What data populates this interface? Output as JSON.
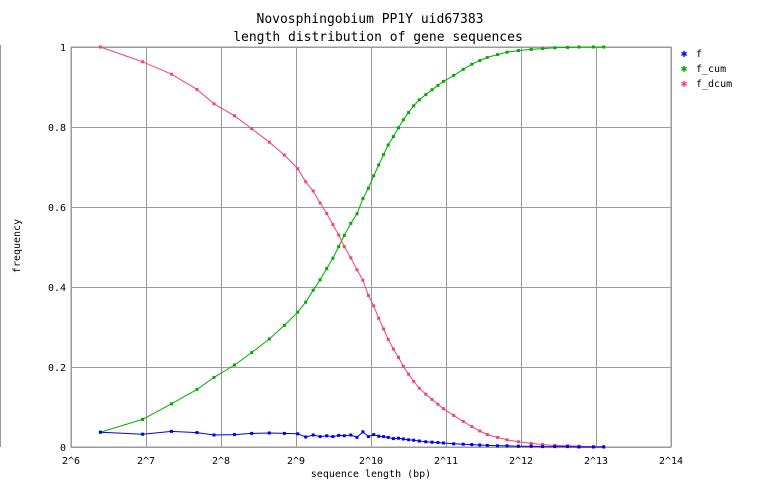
{
  "chart_data": {
    "type": "line",
    "title_line1": "Novosphingobium PP1Y uid67383",
    "title_line2": "length distribution of gene sequences",
    "xlabel": "sequence length (bp)",
    "ylabel": "frequency",
    "x_scale": "log2",
    "xlim": [
      64,
      16384
    ],
    "ylim": [
      0,
      1
    ],
    "x_ticks": [
      {
        "value": 64,
        "label": "2^6"
      },
      {
        "value": 128,
        "label": "2^7"
      },
      {
        "value": 256,
        "label": "2^8"
      },
      {
        "value": 512,
        "label": "2^9"
      },
      {
        "value": 1024,
        "label": "2^10"
      },
      {
        "value": 2048,
        "label": "2^11"
      },
      {
        "value": 4096,
        "label": "2^12"
      },
      {
        "value": 8192,
        "label": "2^13"
      },
      {
        "value": 16384,
        "label": "2^14"
      }
    ],
    "y_ticks": [
      {
        "value": 0,
        "label": "0"
      },
      {
        "value": 0.2,
        "label": "0.2"
      },
      {
        "value": 0.4,
        "label": "0.4"
      },
      {
        "value": 0.6,
        "label": "0.6"
      },
      {
        "value": 0.8,
        "label": "0.8"
      },
      {
        "value": 1,
        "label": "1"
      }
    ],
    "grid": true,
    "legend_position": "right, top",
    "series": [
      {
        "name": "f",
        "color": "#0000ee",
        "points": [
          [
            84,
            0.037
          ],
          [
            124,
            0.032
          ],
          [
            162,
            0.039
          ],
          [
            205,
            0.036
          ],
          [
            240,
            0.03
          ],
          [
            290,
            0.031
          ],
          [
            340,
            0.034
          ],
          [
            400,
            0.035
          ],
          [
            460,
            0.034
          ],
          [
            520,
            0.033
          ],
          [
            560,
            0.025
          ],
          [
            600,
            0.03
          ],
          [
            640,
            0.026
          ],
          [
            680,
            0.028
          ],
          [
            720,
            0.026
          ],
          [
            760,
            0.029
          ],
          [
            800,
            0.028
          ],
          [
            850,
            0.03
          ],
          [
            900,
            0.024
          ],
          [
            950,
            0.038
          ],
          [
            1000,
            0.026
          ],
          [
            1050,
            0.031
          ],
          [
            1100,
            0.027
          ],
          [
            1150,
            0.026
          ],
          [
            1200,
            0.024
          ],
          [
            1260,
            0.021
          ],
          [
            1320,
            0.022
          ],
          [
            1380,
            0.02
          ],
          [
            1450,
            0.018
          ],
          [
            1520,
            0.017
          ],
          [
            1600,
            0.015
          ],
          [
            1700,
            0.013
          ],
          [
            1800,
            0.012
          ],
          [
            1900,
            0.011
          ],
          [
            2000,
            0.01
          ],
          [
            2200,
            0.008
          ],
          [
            2400,
            0.007
          ],
          [
            2600,
            0.006
          ],
          [
            2800,
            0.005
          ],
          [
            3000,
            0.004
          ],
          [
            3300,
            0.003
          ],
          [
            3600,
            0.003
          ],
          [
            4000,
            0.002
          ],
          [
            4500,
            0.002
          ],
          [
            5000,
            0.001
          ],
          [
            5600,
            0.001
          ],
          [
            6300,
            0.001
          ],
          [
            7000,
            0.0
          ],
          [
            8000,
            0.0
          ],
          [
            8800,
            0.0
          ]
        ]
      },
      {
        "name": "f_cum",
        "color": "#00aa00",
        "points": [
          [
            84,
            0.037
          ],
          [
            124,
            0.069
          ],
          [
            162,
            0.108
          ],
          [
            205,
            0.144
          ],
          [
            240,
            0.174
          ],
          [
            290,
            0.205
          ],
          [
            340,
            0.236
          ],
          [
            400,
            0.27
          ],
          [
            460,
            0.304
          ],
          [
            520,
            0.337
          ],
          [
            560,
            0.362
          ],
          [
            600,
            0.392
          ],
          [
            640,
            0.418
          ],
          [
            680,
            0.446
          ],
          [
            720,
            0.472
          ],
          [
            760,
            0.501
          ],
          [
            800,
            0.529
          ],
          [
            850,
            0.559
          ],
          [
            900,
            0.583
          ],
          [
            950,
            0.621
          ],
          [
            1000,
            0.647
          ],
          [
            1050,
            0.678
          ],
          [
            1100,
            0.705
          ],
          [
            1150,
            0.731
          ],
          [
            1200,
            0.755
          ],
          [
            1260,
            0.776
          ],
          [
            1320,
            0.798
          ],
          [
            1380,
            0.818
          ],
          [
            1450,
            0.836
          ],
          [
            1520,
            0.853
          ],
          [
            1600,
            0.868
          ],
          [
            1700,
            0.881
          ],
          [
            1800,
            0.893
          ],
          [
            1900,
            0.904
          ],
          [
            2000,
            0.914
          ],
          [
            2200,
            0.929
          ],
          [
            2400,
            0.944
          ],
          [
            2600,
            0.957
          ],
          [
            2800,
            0.966
          ],
          [
            3000,
            0.974
          ],
          [
            3300,
            0.981
          ],
          [
            3600,
            0.987
          ],
          [
            4000,
            0.991
          ],
          [
            4500,
            0.994
          ],
          [
            5000,
            0.996
          ],
          [
            5600,
            0.998
          ],
          [
            6300,
            0.999
          ],
          [
            7000,
            1.0
          ],
          [
            8000,
            1.0
          ],
          [
            8800,
            1.0
          ]
        ]
      },
      {
        "name": "f_dcum",
        "color": "#ee4477",
        "points": [
          [
            84,
            1.0
          ],
          [
            124,
            0.963
          ],
          [
            162,
            0.932
          ],
          [
            205,
            0.894
          ],
          [
            240,
            0.858
          ],
          [
            290,
            0.828
          ],
          [
            340,
            0.796
          ],
          [
            400,
            0.762
          ],
          [
            460,
            0.73
          ],
          [
            520,
            0.696
          ],
          [
            560,
            0.663
          ],
          [
            600,
            0.64
          ],
          [
            640,
            0.61
          ],
          [
            680,
            0.584
          ],
          [
            720,
            0.556
          ],
          [
            760,
            0.53
          ],
          [
            800,
            0.501
          ],
          [
            850,
            0.473
          ],
          [
            900,
            0.443
          ],
          [
            950,
            0.417
          ],
          [
            1000,
            0.379
          ],
          [
            1050,
            0.353
          ],
          [
            1100,
            0.322
          ],
          [
            1150,
            0.295
          ],
          [
            1200,
            0.269
          ],
          [
            1260,
            0.245
          ],
          [
            1320,
            0.224
          ],
          [
            1380,
            0.202
          ],
          [
            1450,
            0.182
          ],
          [
            1520,
            0.164
          ],
          [
            1600,
            0.147
          ],
          [
            1700,
            0.132
          ],
          [
            1800,
            0.119
          ],
          [
            1900,
            0.107
          ],
          [
            2000,
            0.096
          ],
          [
            2200,
            0.079
          ],
          [
            2400,
            0.064
          ],
          [
            2600,
            0.051
          ],
          [
            2800,
            0.04
          ],
          [
            3000,
            0.031
          ],
          [
            3300,
            0.024
          ],
          [
            3600,
            0.018
          ],
          [
            4000,
            0.013
          ],
          [
            4500,
            0.009
          ],
          [
            5000,
            0.006
          ],
          [
            5600,
            0.004
          ],
          [
            6300,
            0.003
          ],
          [
            7000,
            0.002
          ],
          [
            8000,
            0.001
          ],
          [
            8800,
            0.001
          ]
        ]
      }
    ]
  }
}
